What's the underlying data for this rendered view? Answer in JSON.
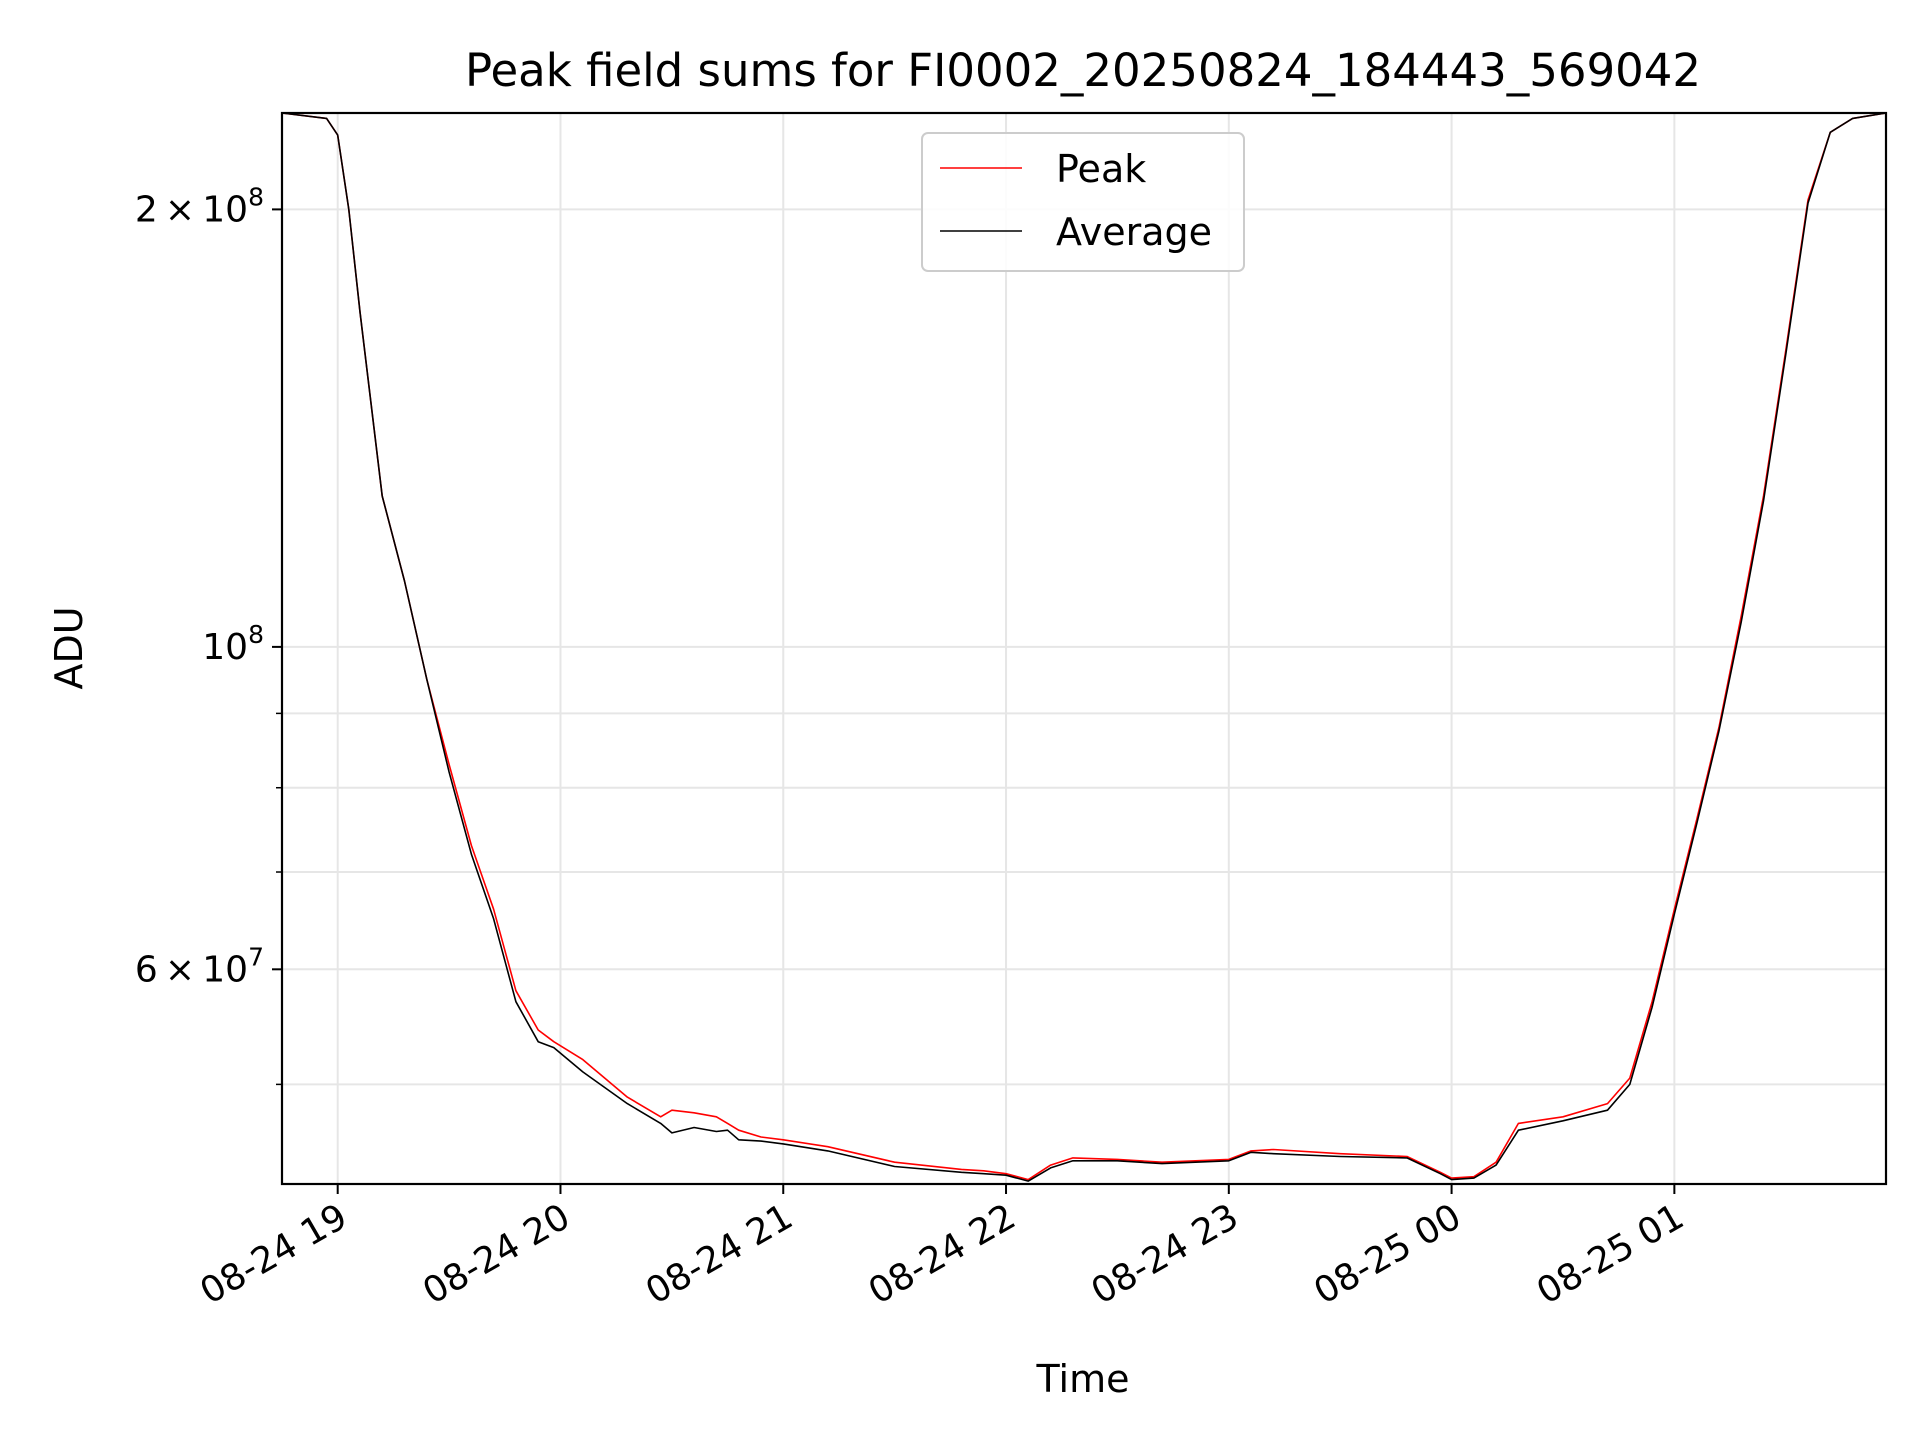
{
  "chart_data": {
    "type": "line",
    "title": "Peak field sums for FI0002_20250824_184443_569042",
    "xlabel": "Time",
    "ylabel": "ADU",
    "x_ticks": [
      "08-24 19",
      "08-24 20",
      "08-24 21",
      "08-24 22",
      "08-24 23",
      "08-25 00",
      "08-25 01"
    ],
    "x_tick_hours": [
      19,
      20,
      21,
      22,
      23,
      24,
      25
    ],
    "xlim_hours": [
      18.75,
      25.95
    ],
    "y_scale": "log",
    "ylim": [
      42700000,
      233000000
    ],
    "y_major_ticks": [
      {
        "value": 200000000,
        "mantissa": "2",
        "exponent": "8"
      },
      {
        "value": 100000000,
        "mantissa": "",
        "exponent": "8"
      },
      {
        "value": 60000000,
        "mantissa": "6",
        "exponent": "7"
      }
    ],
    "y_minor_gridlines": [
      50000000,
      70000000,
      80000000,
      90000000
    ],
    "grid": true,
    "legend_location": "upper center",
    "series": [
      {
        "name": "Peak",
        "color": "#ff0000",
        "x_hours": [
          18.75,
          18.95,
          19.0,
          19.05,
          19.1,
          19.2,
          19.3,
          19.4,
          19.5,
          19.6,
          19.7,
          19.8,
          19.9,
          19.97,
          20.1,
          20.3,
          20.45,
          20.5,
          20.6,
          20.7,
          20.75,
          20.8,
          20.9,
          21.0,
          21.2,
          21.5,
          21.8,
          21.9,
          22.0,
          22.1,
          22.2,
          22.3,
          22.5,
          22.7,
          23.0,
          23.1,
          23.2,
          23.5,
          23.8,
          23.95,
          24.0,
          24.1,
          24.2,
          24.3,
          24.5,
          24.7,
          24.8,
          24.9,
          25.0,
          25.1,
          25.2,
          25.3,
          25.4,
          25.5,
          25.6,
          25.7,
          25.8,
          25.95
        ],
        "values": [
          233000000,
          231000000,
          225000000,
          200000000,
          170000000,
          127000000,
          111000000,
          95000000,
          83000000,
          73000000,
          66000000,
          58000000,
          54500000,
          53500000,
          52000000,
          49000000,
          47500000,
          48000000,
          47800000,
          47500000,
          47000000,
          46500000,
          46000000,
          45800000,
          45300000,
          44200000,
          43700000,
          43600000,
          43400000,
          43000000,
          44000000,
          44500000,
          44400000,
          44200000,
          44400000,
          45000000,
          45100000,
          44800000,
          44600000,
          43500000,
          43100000,
          43200000,
          44200000,
          47000000,
          47500000,
          48500000,
          50500000,
          57000000,
          66000000,
          76000000,
          88000000,
          105000000,
          127000000,
          160000000,
          203000000,
          226000000,
          231000000,
          233000000
        ]
      },
      {
        "name": "Average",
        "color": "#000000",
        "x_hours": [
          18.75,
          18.95,
          19.0,
          19.05,
          19.1,
          19.2,
          19.3,
          19.4,
          19.5,
          19.6,
          19.7,
          19.8,
          19.9,
          19.97,
          20.1,
          20.3,
          20.45,
          20.5,
          20.6,
          20.7,
          20.75,
          20.8,
          20.9,
          21.0,
          21.2,
          21.5,
          21.8,
          21.9,
          22.0,
          22.1,
          22.2,
          22.3,
          22.5,
          22.7,
          23.0,
          23.1,
          23.2,
          23.5,
          23.8,
          23.95,
          24.0,
          24.1,
          24.2,
          24.3,
          24.5,
          24.7,
          24.8,
          24.9,
          25.0,
          25.1,
          25.2,
          25.3,
          25.4,
          25.5,
          25.6,
          25.7,
          25.8,
          25.95
        ],
        "values": [
          233000000,
          231000000,
          225000000,
          200000000,
          170000000,
          127000000,
          111000000,
          95000000,
          82000000,
          72000000,
          65000000,
          57000000,
          53500000,
          53000000,
          51000000,
          48500000,
          47000000,
          46300000,
          46700000,
          46400000,
          46500000,
          45800000,
          45700000,
          45500000,
          45000000,
          43900000,
          43500000,
          43400000,
          43300000,
          42900000,
          43800000,
          44300000,
          44300000,
          44100000,
          44300000,
          44900000,
          44800000,
          44600000,
          44500000,
          43400000,
          43000000,
          43100000,
          44000000,
          46500000,
          47200000,
          48000000,
          50000000,
          56500000,
          65500000,
          75500000,
          87500000,
          104000000,
          126000000,
          159000000,
          202000000,
          226000000,
          231000000,
          233000000
        ]
      }
    ]
  }
}
